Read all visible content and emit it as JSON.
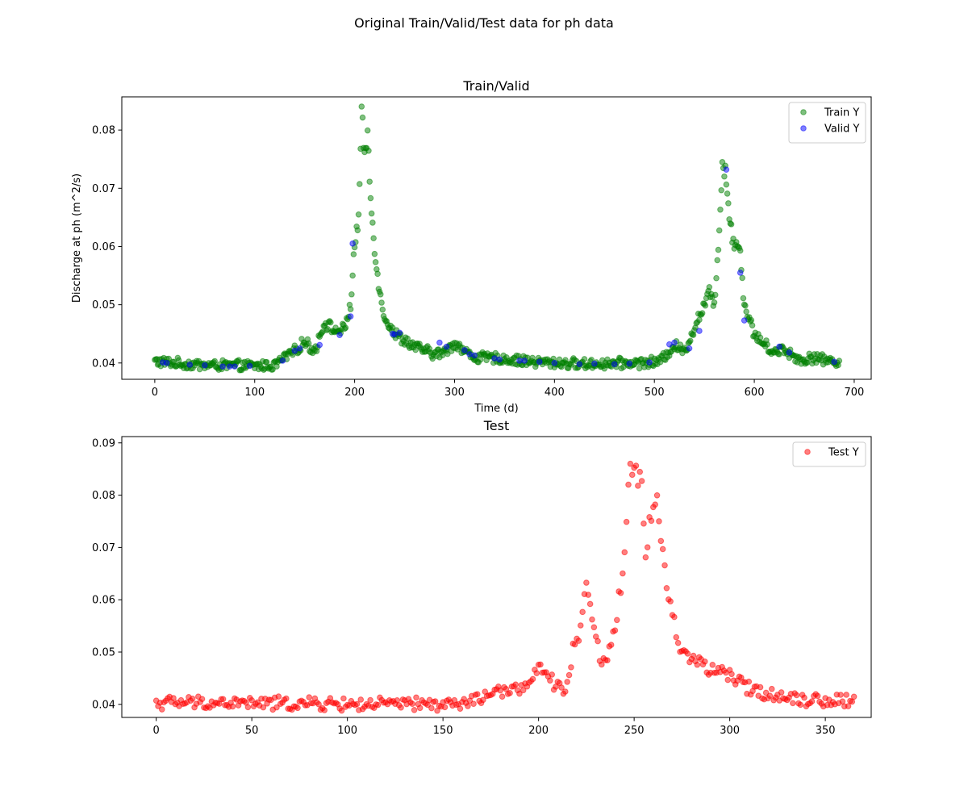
{
  "figure": {
    "suptitle": "Original Train/Valid/Test data for ph data"
  },
  "chart_data": [
    {
      "type": "scatter",
      "title": "Train/Valid",
      "xlabel": "Time (d)",
      "ylabel": "Discharge at ph (m^2/s)",
      "xlim": [
        -33,
        717
      ],
      "ylim": [
        0.0372,
        0.0857
      ],
      "xticks": [
        0,
        100,
        200,
        300,
        400,
        500,
        600,
        700
      ],
      "yticks": [
        0.04,
        0.05,
        0.06,
        0.07,
        0.08
      ],
      "legend": "top-right",
      "series": [
        {
          "name": "Train Y",
          "color": "#008000",
          "anchors": [
            [
              0,
              0.0403
            ],
            [
              30,
              0.0398
            ],
            [
              60,
              0.0396
            ],
            [
              100,
              0.0395
            ],
            [
              120,
              0.0396
            ],
            [
              130,
              0.041
            ],
            [
              140,
              0.042
            ],
            [
              150,
              0.0437
            ],
            [
              160,
              0.042
            ],
            [
              170,
              0.047
            ],
            [
              180,
              0.0455
            ],
            [
              190,
              0.0458
            ],
            [
              196,
              0.05
            ],
            [
              200,
              0.06
            ],
            [
              204,
              0.065
            ],
            [
              207,
              0.083
            ],
            [
              210,
              0.075
            ],
            [
              213,
              0.0795
            ],
            [
              216,
              0.068
            ],
            [
              220,
              0.06
            ],
            [
              225,
              0.052
            ],
            [
              230,
              0.048
            ],
            [
              240,
              0.045
            ],
            [
              260,
              0.0428
            ],
            [
              280,
              0.0415
            ],
            [
              290,
              0.0418
            ],
            [
              300,
              0.0435
            ],
            [
              310,
              0.042
            ],
            [
              320,
              0.041
            ],
            [
              340,
              0.0408
            ],
            [
              380,
              0.0402
            ],
            [
              430,
              0.0398
            ],
            [
              480,
              0.04
            ],
            [
              505,
              0.0402
            ],
            [
              512,
              0.0415
            ],
            [
              520,
              0.043
            ],
            [
              530,
              0.042
            ],
            [
              540,
              0.046
            ],
            [
              550,
              0.05
            ],
            [
              555,
              0.052
            ],
            [
              560,
              0.05
            ],
            [
              565,
              0.063
            ],
            [
              568,
              0.0745
            ],
            [
              572,
              0.072
            ],
            [
              575,
              0.065
            ],
            [
              580,
              0.06
            ],
            [
              585,
              0.061
            ],
            [
              590,
              0.05
            ],
            [
              600,
              0.045
            ],
            [
              610,
              0.0432
            ],
            [
              620,
              0.0418
            ],
            [
              630,
              0.0425
            ],
            [
              640,
              0.041
            ],
            [
              650,
              0.0405
            ],
            [
              660,
              0.041
            ],
            [
              670,
              0.0405
            ],
            [
              685,
              0.0402
            ]
          ],
          "noise": [
            0.02,
            0.0002
          ],
          "x": [
            0,
            685,
            1
          ]
        },
        {
          "name": "Valid Y",
          "color": "#0000ff",
          "points": [
            [
              8,
              0.0401
            ],
            [
              12,
              0.04
            ],
            [
              35,
              0.0397
            ],
            [
              50,
              0.0396
            ],
            [
              68,
              0.0394
            ],
            [
              75,
              0.0394
            ],
            [
              80,
              0.0394
            ],
            [
              95,
              0.0395
            ],
            [
              128,
              0.0404
            ],
            [
              140,
              0.0421
            ],
            [
              145,
              0.0425
            ],
            [
              165,
              0.0431
            ],
            [
              185,
              0.0448
            ],
            [
              196,
              0.048
            ],
            [
              198,
              0.0605
            ],
            [
              238,
              0.045
            ],
            [
              240,
              0.0449
            ],
            [
              245,
              0.0452
            ],
            [
              285,
              0.0435
            ],
            [
              292,
              0.0428
            ],
            [
              310,
              0.0422
            ],
            [
              315,
              0.0415
            ],
            [
              320,
              0.0413
            ],
            [
              340,
              0.0408
            ],
            [
              345,
              0.0406
            ],
            [
              365,
              0.0404
            ],
            [
              370,
              0.0404
            ],
            [
              385,
              0.0402
            ],
            [
              400,
              0.04
            ],
            [
              425,
              0.0398
            ],
            [
              440,
              0.0399
            ],
            [
              460,
              0.0398
            ],
            [
              475,
              0.0399
            ],
            [
              495,
              0.0401
            ],
            [
              515,
              0.0432
            ],
            [
              520,
              0.0435
            ],
            [
              535,
              0.0425
            ],
            [
              545,
              0.0455
            ],
            [
              572,
              0.0732
            ],
            [
              586,
              0.0555
            ],
            [
              590,
              0.0473
            ],
            [
              625,
              0.0428
            ],
            [
              635,
              0.0418
            ],
            [
              680,
              0.0402
            ]
          ]
        }
      ]
    },
    {
      "type": "scatter",
      "title": "Test",
      "xlabel": "",
      "ylabel": "",
      "xlim": [
        -18,
        374
      ],
      "ylim": [
        0.0375,
        0.0912
      ],
      "xticks": [
        0,
        50,
        100,
        150,
        200,
        250,
        300,
        350
      ],
      "yticks": [
        0.04,
        0.05,
        0.06,
        0.07,
        0.08,
        0.09
      ],
      "legend": "top-right",
      "series": [
        {
          "name": "Test Y",
          "color": "#ff0000",
          "anchors": [
            [
              0,
              0.0403
            ],
            [
              20,
              0.0403
            ],
            [
              50,
              0.0402
            ],
            [
              100,
              0.04
            ],
            [
              140,
              0.04
            ],
            [
              160,
              0.04
            ],
            [
              168,
              0.041
            ],
            [
              175,
              0.042
            ],
            [
              185,
              0.0425
            ],
            [
              195,
              0.044
            ],
            [
              200,
              0.0465
            ],
            [
              205,
              0.045
            ],
            [
              210,
              0.0435
            ],
            [
              214,
              0.043
            ],
            [
              218,
              0.05
            ],
            [
              222,
              0.055
            ],
            [
              225,
              0.063
            ],
            [
              228,
              0.058
            ],
            [
              232,
              0.048
            ],
            [
              236,
              0.049
            ],
            [
              240,
              0.055
            ],
            [
              243,
              0.062
            ],
            [
              246,
              0.075
            ],
            [
              248,
              0.0885
            ],
            [
              250,
              0.084
            ],
            [
              254,
              0.0815
            ],
            [
              256,
              0.068
            ],
            [
              258,
              0.075
            ],
            [
              262,
              0.08
            ],
            [
              266,
              0.065
            ],
            [
              270,
              0.057
            ],
            [
              275,
              0.05
            ],
            [
              285,
              0.048
            ],
            [
              290,
              0.0465
            ],
            [
              300,
              0.0455
            ],
            [
              305,
              0.044
            ],
            [
              310,
              0.0432
            ],
            [
              320,
              0.042
            ],
            [
              330,
              0.0415
            ],
            [
              345,
              0.0408
            ],
            [
              365,
              0.0408
            ]
          ],
          "noise": [
            0.03,
            0.0002
          ],
          "x": [
            0,
            365,
            1
          ]
        }
      ]
    }
  ]
}
